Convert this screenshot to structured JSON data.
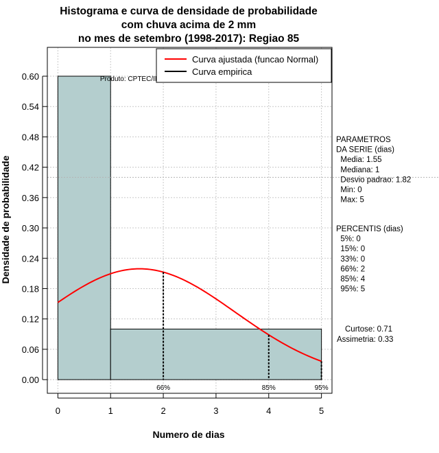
{
  "chart_data": {
    "type": "bar",
    "title": [
      "Histograma e curva de densidade de probabilidade",
      "com chuva acima de 2 mm",
      "no mes de setembro (1998-2017): Regiao 85"
    ],
    "xlabel": "Numero de dias",
    "ylabel": "Densidade de probabilidade",
    "xlim": [
      -0.2,
      5.2
    ],
    "ylim": [
      -0.027,
      0.657
    ],
    "x_ticks": [
      0,
      1,
      2,
      3,
      4,
      5
    ],
    "y_ticks": [
      0.0,
      0.06,
      0.12,
      0.18,
      0.24,
      0.3,
      0.36,
      0.42,
      0.48,
      0.54,
      0.6
    ],
    "y_tick_labels": [
      "0.00",
      "0.06",
      "0.12",
      "0.18",
      "0.24",
      "0.30",
      "0.36",
      "0.42",
      "0.48",
      "0.54",
      "0.60"
    ],
    "grid": true,
    "bins": [
      {
        "x0": 0,
        "x1": 1,
        "density": 0.6
      },
      {
        "x0": 1,
        "x1": 5,
        "density": 0.1
      }
    ],
    "series": [
      {
        "name": "Curva ajustada (funcao Normal)",
        "color": "#ff0000",
        "type": "line",
        "mean": 1.55,
        "sd": 1.82,
        "x_range": [
          0,
          5
        ]
      },
      {
        "name": "Curva empirica",
        "color": "#000000",
        "type": "line"
      }
    ],
    "percentile_markers": [
      {
        "label": "66%",
        "x": 2
      },
      {
        "label": "85%",
        "x": 4
      },
      {
        "label": "95%",
        "x": 5
      }
    ],
    "horizontal_reference": 0.4,
    "legend_position": "top-right",
    "product_label": "Produto: CPTEC/INPE",
    "bar_color": "#b4cece"
  },
  "side_panel": {
    "params_lines": [
      "PARAMETROS",
      "DA SERIE (dias)",
      "  Media: 1.55",
      "  Mediana: 1",
      "  Desvio padrao: 1.82",
      "  Min: 0",
      "  Max: 5"
    ],
    "percentis_lines": [
      "PERCENTIS (dias)",
      "  5%: 0",
      "  15%: 0",
      "  33%: 0",
      "  66%: 2",
      "  85%: 4",
      "  95%: 5"
    ],
    "curtose": "Curtose: 0.71",
    "assimetria": "Assimetria: 0.33"
  }
}
